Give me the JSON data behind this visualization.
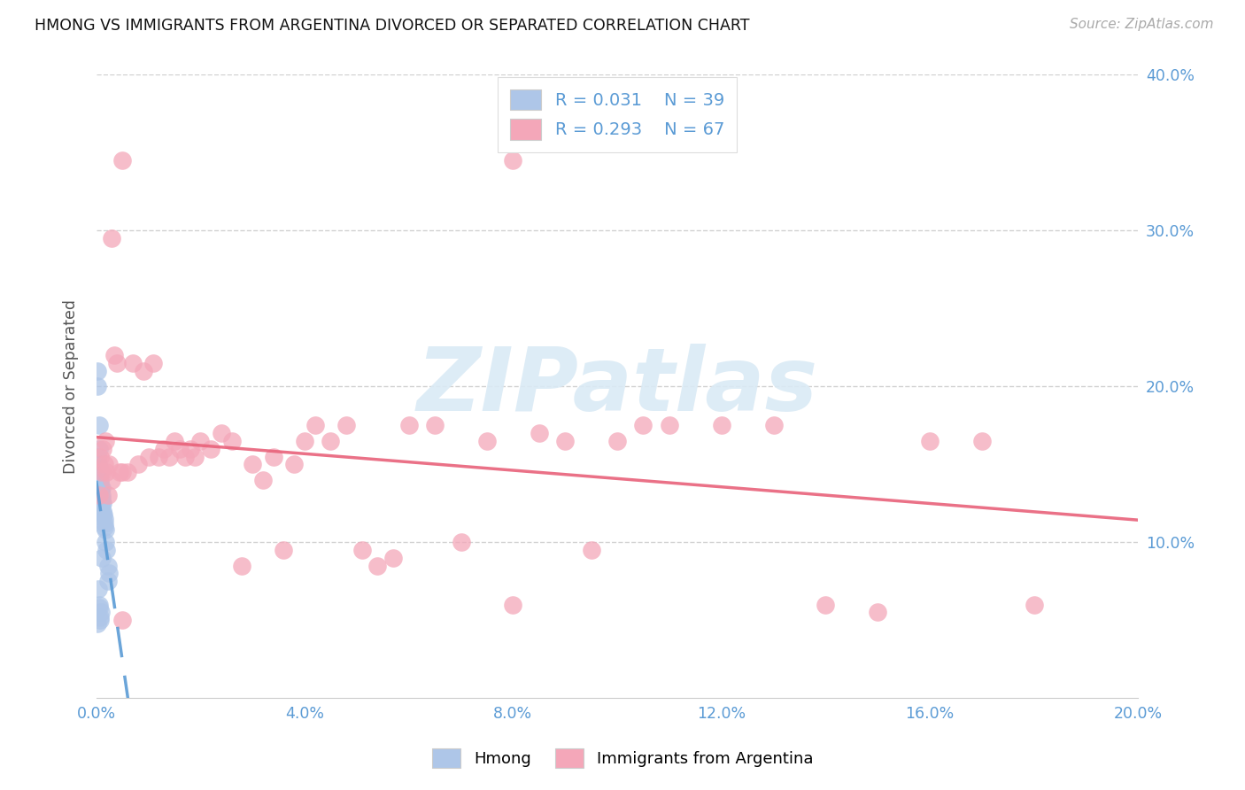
{
  "title": "HMONG VS IMMIGRANTS FROM ARGENTINA DIVORCED OR SEPARATED CORRELATION CHART",
  "source": "Source: ZipAtlas.com",
  "ylabel": "Divorced or Separated",
  "xlim": [
    0.0,
    0.2
  ],
  "ylim": [
    0.0,
    0.4
  ],
  "xtick_vals": [
    0.0,
    0.04,
    0.08,
    0.12,
    0.16,
    0.2
  ],
  "ytick_vals": [
    0.0,
    0.1,
    0.2,
    0.3,
    0.4
  ],
  "xtick_labels": [
    "0.0%",
    "4.0%",
    "8.0%",
    "12.0%",
    "16.0%",
    "20.0%"
  ],
  "ytick_labels_right": [
    "",
    "10.0%",
    "20.0%",
    "30.0%",
    "40.0%"
  ],
  "R_hmong": 0.031,
  "N_hmong": 39,
  "R_argentina": 0.293,
  "N_argentina": 67,
  "hmong_color": "#aec6e8",
  "argentina_color": "#f4a7b9",
  "hmong_line_color": "#5b9bd5",
  "argentina_line_color": "#e8627a",
  "watermark_text": "ZIPatlas",
  "watermark_color": "#daeaf5",
  "legend1_label": "Hmong",
  "legend2_label": "Immigrants from Argentina",
  "grid_color": "#cccccc",
  "tick_color": "#5b9bd5",
  "background_color": "#ffffff",
  "hmong_x": [
    0.0002,
    0.0003,
    0.0003,
    0.0004,
    0.0005,
    0.0005,
    0.0006,
    0.0006,
    0.0007,
    0.0007,
    0.0008,
    0.0008,
    0.0009,
    0.0009,
    0.001,
    0.001,
    0.0011,
    0.0011,
    0.0012,
    0.0012,
    0.0013,
    0.0014,
    0.0015,
    0.0015,
    0.0016,
    0.0017,
    0.0018,
    0.002,
    0.0022,
    0.0023,
    0.0025,
    0.0003,
    0.0004,
    0.0005,
    0.0006,
    0.0007,
    0.0008,
    0.0009,
    0.001
  ],
  "hmong_y": [
    0.21,
    0.2,
    0.155,
    0.15,
    0.175,
    0.16,
    0.148,
    0.145,
    0.145,
    0.138,
    0.14,
    0.133,
    0.135,
    0.128,
    0.135,
    0.128,
    0.13,
    0.125,
    0.125,
    0.12,
    0.118,
    0.118,
    0.115,
    0.112,
    0.11,
    0.108,
    0.1,
    0.095,
    0.085,
    0.075,
    0.08,
    0.048,
    0.07,
    0.06,
    0.058,
    0.052,
    0.05,
    0.055,
    0.09
  ],
  "argentina_x": [
    0.0005,
    0.0008,
    0.001,
    0.0012,
    0.0015,
    0.0018,
    0.002,
    0.0022,
    0.0025,
    0.003,
    0.0035,
    0.004,
    0.0045,
    0.005,
    0.006,
    0.007,
    0.008,
    0.009,
    0.01,
    0.011,
    0.012,
    0.013,
    0.014,
    0.015,
    0.016,
    0.017,
    0.018,
    0.019,
    0.02,
    0.022,
    0.024,
    0.026,
    0.028,
    0.03,
    0.032,
    0.034,
    0.036,
    0.038,
    0.04,
    0.042,
    0.045,
    0.048,
    0.051,
    0.054,
    0.057,
    0.06,
    0.065,
    0.07,
    0.075,
    0.08,
    0.085,
    0.09,
    0.095,
    0.1,
    0.105,
    0.11,
    0.12,
    0.13,
    0.14,
    0.15,
    0.16,
    0.17,
    0.18,
    0.003,
    0.005,
    0.005,
    0.08
  ],
  "argentina_y": [
    0.13,
    0.155,
    0.145,
    0.16,
    0.15,
    0.165,
    0.145,
    0.13,
    0.15,
    0.14,
    0.22,
    0.215,
    0.145,
    0.145,
    0.145,
    0.215,
    0.15,
    0.21,
    0.155,
    0.215,
    0.155,
    0.16,
    0.155,
    0.165,
    0.16,
    0.155,
    0.16,
    0.155,
    0.165,
    0.16,
    0.17,
    0.165,
    0.085,
    0.15,
    0.14,
    0.155,
    0.095,
    0.15,
    0.165,
    0.175,
    0.165,
    0.175,
    0.095,
    0.085,
    0.09,
    0.175,
    0.175,
    0.1,
    0.165,
    0.06,
    0.17,
    0.165,
    0.095,
    0.165,
    0.175,
    0.175,
    0.175,
    0.175,
    0.06,
    0.055,
    0.165,
    0.165,
    0.06,
    0.295,
    0.345,
    0.05,
    0.345
  ]
}
